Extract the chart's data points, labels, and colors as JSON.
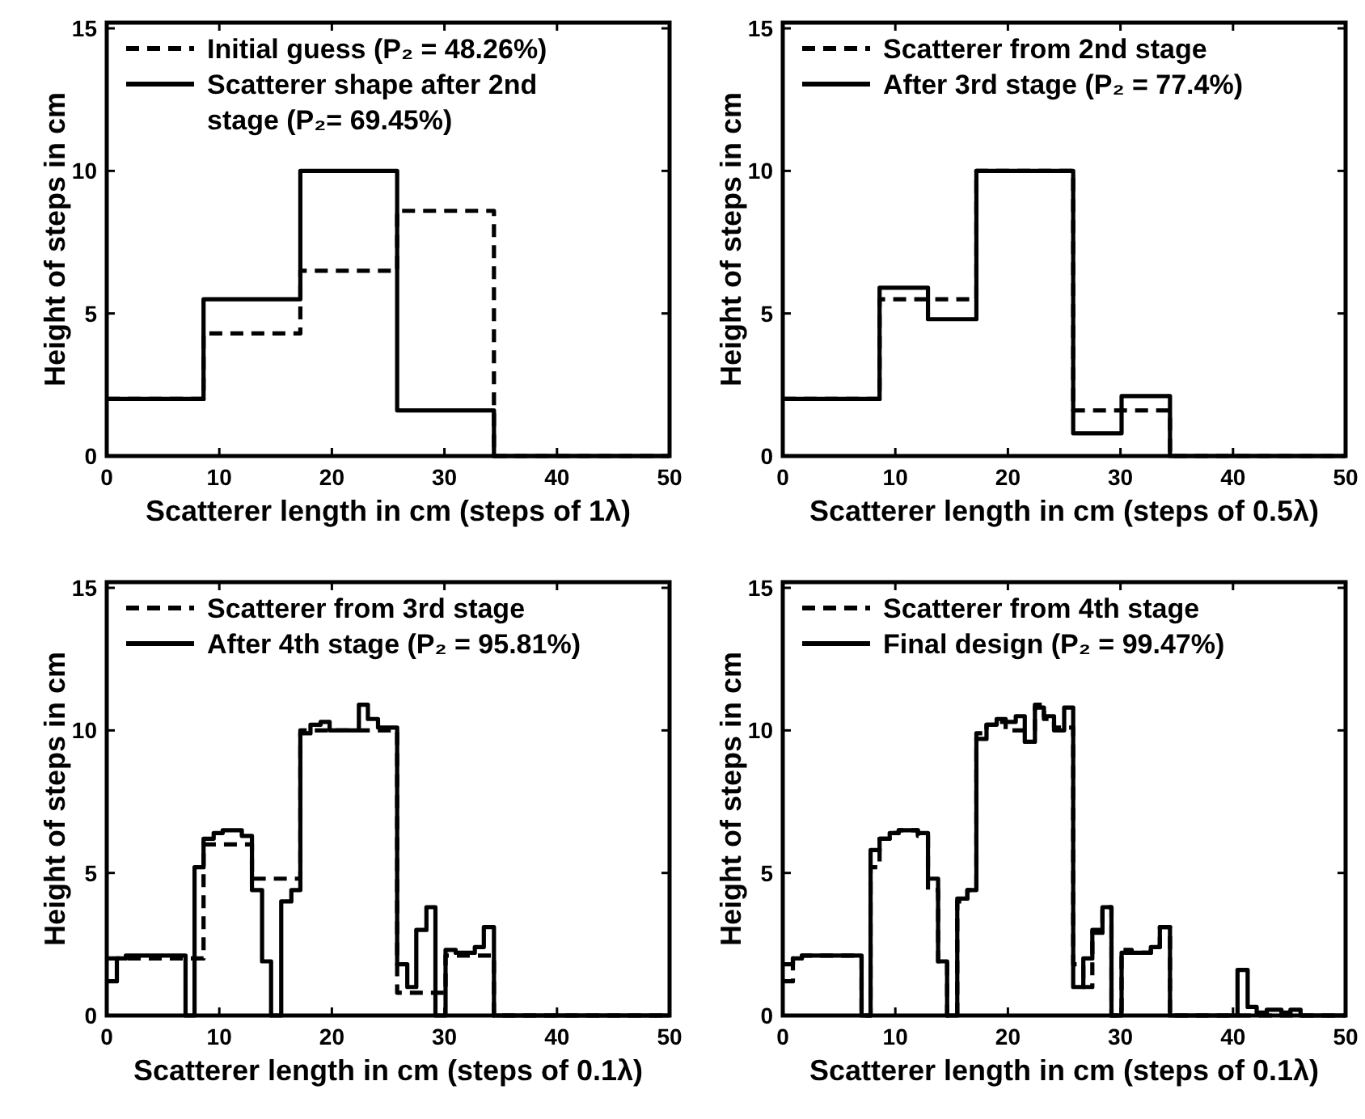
{
  "chart_data": [
    {
      "type": "step",
      "xlabel": "Scatterer length in cm (steps of 1λ)",
      "ylabel": "Height of steps in cm",
      "xlim": [
        0,
        50
      ],
      "ylim": [
        0,
        15.2
      ],
      "xticks": [
        0,
        10,
        20,
        30,
        40,
        50
      ],
      "yticks": [
        0,
        5,
        10,
        15
      ],
      "grid": false,
      "legend": "top left",
      "series": [
        {
          "name": "Initial guess (P₂ = 48.26%)",
          "color": "#000000",
          "line_style": "dashed",
          "x": [
            0,
            8.6,
            17.2,
            25.8,
            34.4,
            50
          ],
          "values": [
            2,
            4.3,
            6.5,
            8.6,
            0,
            0
          ]
        },
        {
          "name": "Scatterer shape after 2nd stage (P₂= 69.45%)",
          "color": "#000000",
          "line_style": "solid",
          "x": [
            0,
            8.6,
            17.2,
            25.8,
            34.4,
            50
          ],
          "values": [
            2,
            5.5,
            10,
            1.6,
            0,
            0
          ]
        }
      ]
    },
    {
      "type": "step",
      "xlabel": "Scatterer length in cm (steps of 0.5λ)",
      "ylabel": "Height of steps in cm",
      "xlim": [
        0,
        50
      ],
      "ylim": [
        0,
        15.2
      ],
      "xticks": [
        0,
        10,
        20,
        30,
        40,
        50
      ],
      "yticks": [
        0,
        5,
        10,
        15
      ],
      "grid": false,
      "legend": "top left",
      "series": [
        {
          "name": "Scatterer from 2nd stage",
          "color": "#000000",
          "line_style": "dashed",
          "x": [
            0,
            8.6,
            12.9,
            17.2,
            25.8,
            30.1,
            34.4,
            50
          ],
          "values": [
            2,
            5.5,
            5.5,
            10,
            1.6,
            1.6,
            0,
            0
          ]
        },
        {
          "name": "After 3rd stage (P₂ = 77.4%)",
          "color": "#000000",
          "line_style": "solid",
          "x": [
            0,
            8.6,
            12.9,
            17.2,
            25.8,
            30.1,
            34.4,
            50
          ],
          "values": [
            2,
            5.9,
            4.8,
            10,
            0.8,
            2.1,
            0,
            0
          ]
        }
      ]
    },
    {
      "type": "step",
      "xlabel": "Scatterer length in cm (steps of 0.1λ)",
      "ylabel": "Height of steps in cm",
      "xlim": [
        0,
        50
      ],
      "ylim": [
        0,
        15.2
      ],
      "xticks": [
        0,
        10,
        20,
        30,
        40,
        50
      ],
      "yticks": [
        0,
        5,
        10,
        15
      ],
      "grid": false,
      "legend": "top left",
      "series": [
        {
          "name": "Scatterer from 3rd stage",
          "color": "#000000",
          "line_style": "dashed",
          "x": [
            0,
            8.6,
            12.9,
            17.2,
            25.8,
            30.1,
            34.4,
            50
          ],
          "values": [
            2,
            6,
            4.8,
            10,
            0.8,
            2.1,
            0,
            0
          ]
        },
        {
          "name": "After 4th stage (P₂ = 95.81%)",
          "color": "#000000",
          "line_style": "solid",
          "x": [
            0,
            0.9,
            1.7,
            7.0,
            7.8,
            8.6,
            9.5,
            10.3,
            12.0,
            12.9,
            13.8,
            14.6,
            15.5,
            16.4,
            17.2,
            18.1,
            19.0,
            19.8,
            22.4,
            23.2,
            24.1,
            25.8,
            26.7,
            27.5,
            28.4,
            29.2,
            30.1,
            31.0,
            32.7,
            33.5,
            34.4,
            50
          ],
          "values": [
            1.2,
            2.0,
            2.1,
            0,
            5.2,
            6.2,
            6.4,
            6.5,
            6.3,
            4.4,
            1.9,
            0,
            4.0,
            4.4,
            9.9,
            10.2,
            10.3,
            10.0,
            10.9,
            10.4,
            10.1,
            1.8,
            1.0,
            3.0,
            3.8,
            0,
            2.3,
            2.2,
            2.4,
            3.1,
            0,
            0
          ]
        }
      ]
    },
    {
      "type": "step",
      "xlabel": "Scatterer length in cm (steps of 0.1λ)",
      "ylabel": "Height of steps in cm",
      "xlim": [
        0,
        50
      ],
      "ylim": [
        0,
        15.2
      ],
      "xticks": [
        0,
        10,
        20,
        30,
        40,
        50
      ],
      "yticks": [
        0,
        5,
        10,
        15
      ],
      "grid": false,
      "legend": "top left",
      "series": [
        {
          "name": "Scatterer from 4th stage",
          "color": "#000000",
          "line_style": "dashed",
          "x": [
            0,
            0.9,
            1.7,
            7.0,
            7.8,
            8.6,
            9.5,
            10.3,
            12.0,
            12.9,
            13.8,
            14.6,
            15.5,
            16.4,
            17.2,
            18.1,
            19.0,
            19.8,
            22.4,
            23.2,
            24.1,
            25.8,
            26.7,
            27.5,
            28.4,
            29.2,
            30.1,
            31.0,
            32.7,
            33.5,
            34.4,
            50
          ],
          "values": [
            1.2,
            2.0,
            2.1,
            0,
            5.2,
            6.2,
            6.4,
            6.5,
            6.3,
            4.4,
            1.9,
            0,
            4.0,
            4.4,
            9.9,
            10.2,
            10.3,
            10.0,
            10.9,
            10.4,
            10.1,
            1.8,
            1.0,
            3.0,
            3.8,
            0,
            2.3,
            2.2,
            2.4,
            3.1,
            0,
            0
          ]
        },
        {
          "name": "Final design (P₂ = 99.47%)",
          "color": "#000000",
          "line_style": "solid",
          "x": [
            0,
            0.9,
            1.7,
            7.0,
            7.8,
            8.6,
            9.5,
            10.3,
            12.0,
            12.9,
            13.8,
            14.6,
            15.5,
            16.4,
            17.2,
            18.1,
            19.0,
            19.8,
            20.7,
            21.5,
            22.4,
            23.2,
            24.1,
            25.0,
            25.8,
            26.7,
            27.5,
            28.4,
            29.2,
            30.1,
            32.7,
            33.5,
            34.4,
            40.4,
            41.3,
            42.1,
            43.0,
            44.3,
            45.1,
            46.0,
            50
          ],
          "values": [
            1.8,
            2.0,
            2.1,
            0,
            5.8,
            6.2,
            6.4,
            6.5,
            6.4,
            4.8,
            1.9,
            0,
            4.1,
            4.4,
            9.7,
            10.2,
            10.4,
            10.3,
            10.5,
            9.6,
            10.8,
            10.5,
            10.0,
            10.8,
            1.0,
            2.0,
            2.9,
            3.8,
            0,
            2.2,
            2.4,
            3.1,
            0,
            1.6,
            0.3,
            0.1,
            0.2,
            0.1,
            0.2,
            0,
            0
          ]
        }
      ]
    }
  ]
}
